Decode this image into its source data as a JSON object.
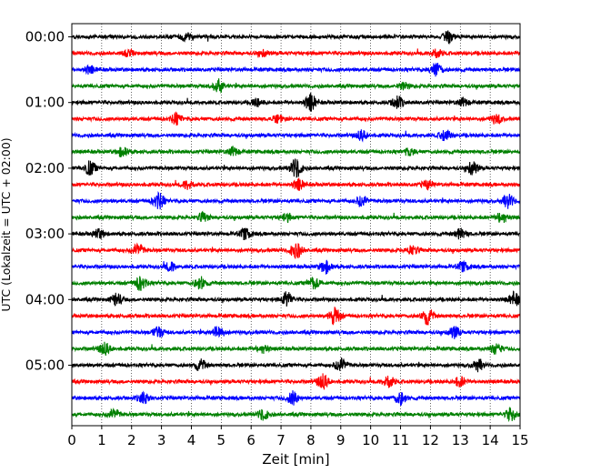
{
  "chart_data": {
    "type": "line",
    "title": "",
    "xlabel": "Zeit  [min]",
    "ylabel": "UTC (Lokalzeit = UTC + 02:00)",
    "xlim": [
      0,
      15
    ],
    "x_ticks": [
      0,
      1,
      2,
      3,
      4,
      5,
      6,
      7,
      8,
      9,
      10,
      11,
      12,
      13,
      14,
      15
    ],
    "y_tick_labels": [
      "00:00",
      "01:00",
      "02:00",
      "03:00",
      "04:00",
      "05:00"
    ],
    "grid": "vertical dotted lines at each minute",
    "legend": "none",
    "trace_colors": [
      "#000000",
      "#ff0000",
      "#0000ff",
      "#008000"
    ],
    "trace_interval_minutes": 15,
    "traces": [
      {
        "start": "00:00",
        "color": "#000000",
        "events": [
          [
            3.8,
            1.2
          ],
          [
            12.6,
            1.8
          ]
        ]
      },
      {
        "start": "00:15",
        "color": "#ff0000",
        "events": [
          [
            1.9,
            0.9
          ],
          [
            6.4,
            1.0
          ],
          [
            12.2,
            1.6
          ]
        ]
      },
      {
        "start": "00:30",
        "color": "#0000ff",
        "events": [
          [
            0.6,
            1.2
          ],
          [
            12.2,
            2.4
          ]
        ]
      },
      {
        "start": "00:45",
        "color": "#008000",
        "events": [
          [
            4.9,
            2.2
          ],
          [
            11.1,
            1.1
          ]
        ]
      },
      {
        "start": "01:00",
        "color": "#000000",
        "events": [
          [
            6.2,
            1.3
          ],
          [
            8.0,
            2.9
          ],
          [
            10.9,
            2.0
          ],
          [
            13.1,
            1.3
          ]
        ]
      },
      {
        "start": "01:15",
        "color": "#ff0000",
        "events": [
          [
            3.5,
            1.7
          ],
          [
            6.9,
            1.2
          ],
          [
            14.2,
            1.6
          ]
        ]
      },
      {
        "start": "01:30",
        "color": "#0000ff",
        "events": [
          [
            9.7,
            1.6
          ],
          [
            12.5,
            1.8
          ]
        ]
      },
      {
        "start": "01:45",
        "color": "#008000",
        "events": [
          [
            1.7,
            1.6
          ],
          [
            5.4,
            1.4
          ],
          [
            11.3,
            1.2
          ]
        ]
      },
      {
        "start": "02:00",
        "color": "#000000",
        "events": [
          [
            0.6,
            2.3
          ],
          [
            7.5,
            3.3
          ],
          [
            13.4,
            2.2
          ]
        ]
      },
      {
        "start": "02:15",
        "color": "#ff0000",
        "events": [
          [
            3.9,
            1.5
          ],
          [
            7.6,
            1.8
          ],
          [
            11.9,
            1.4
          ]
        ]
      },
      {
        "start": "02:30",
        "color": "#0000ff",
        "events": [
          [
            2.9,
            2.6
          ],
          [
            9.7,
            1.9
          ],
          [
            14.6,
            2.3
          ]
        ]
      },
      {
        "start": "02:45",
        "color": "#008000",
        "events": [
          [
            4.4,
            1.4
          ],
          [
            7.2,
            1.3
          ],
          [
            14.4,
            1.9
          ]
        ]
      },
      {
        "start": "03:00",
        "color": "#000000",
        "events": [
          [
            0.9,
            1.6
          ],
          [
            5.8,
            1.8
          ],
          [
            13.0,
            1.7
          ]
        ]
      },
      {
        "start": "03:15",
        "color": "#ff0000",
        "events": [
          [
            2.2,
            2.0
          ],
          [
            7.5,
            2.7
          ],
          [
            11.4,
            1.6
          ]
        ]
      },
      {
        "start": "03:30",
        "color": "#0000ff",
        "events": [
          [
            3.3,
            1.4
          ],
          [
            8.5,
            2.1
          ],
          [
            13.1,
            1.5
          ]
        ]
      },
      {
        "start": "03:45",
        "color": "#008000",
        "events": [
          [
            2.3,
            2.3
          ],
          [
            4.3,
            2.0
          ],
          [
            8.1,
            1.8
          ]
        ]
      },
      {
        "start": "04:00",
        "color": "#000000",
        "events": [
          [
            1.5,
            2.0
          ],
          [
            7.2,
            2.4
          ],
          [
            14.8,
            2.2
          ]
        ]
      },
      {
        "start": "04:15",
        "color": "#ff0000",
        "events": [
          [
            8.8,
            2.8
          ],
          [
            11.9,
            2.7
          ]
        ]
      },
      {
        "start": "04:30",
        "color": "#0000ff",
        "events": [
          [
            2.9,
            1.9
          ],
          [
            4.9,
            2.2
          ],
          [
            12.8,
            1.9
          ]
        ]
      },
      {
        "start": "04:45",
        "color": "#008000",
        "events": [
          [
            1.1,
            2.0
          ],
          [
            6.4,
            1.4
          ],
          [
            14.2,
            1.7
          ]
        ]
      },
      {
        "start": "05:00",
        "color": "#000000",
        "events": [
          [
            4.3,
            1.7
          ],
          [
            9.0,
            2.3
          ],
          [
            13.6,
            1.9
          ]
        ]
      },
      {
        "start": "05:15",
        "color": "#ff0000",
        "events": [
          [
            8.4,
            2.5
          ],
          [
            10.6,
            2.2
          ],
          [
            13.0,
            1.6
          ]
        ]
      },
      {
        "start": "05:30",
        "color": "#0000ff",
        "events": [
          [
            2.4,
            1.7
          ],
          [
            7.4,
            2.2
          ],
          [
            11.0,
            2.1
          ]
        ]
      },
      {
        "start": "05:45",
        "color": "#008000",
        "events": [
          [
            1.4,
            1.6
          ],
          [
            6.4,
            1.7
          ],
          [
            14.7,
            2.1
          ]
        ]
      }
    ]
  }
}
